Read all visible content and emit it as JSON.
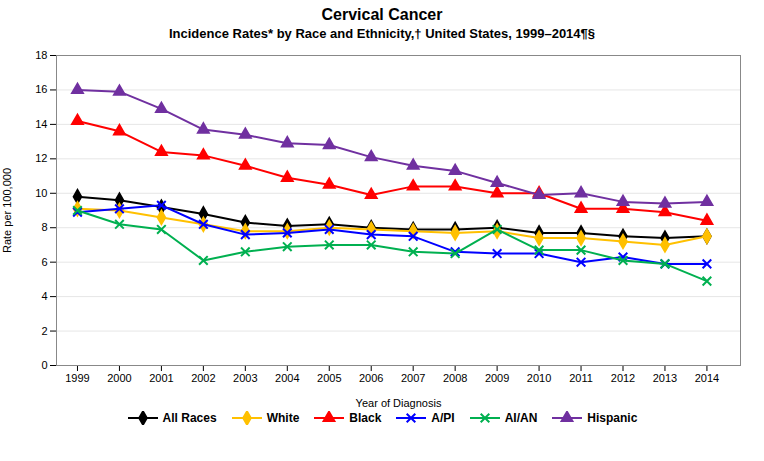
{
  "chart_data": {
    "type": "line",
    "title": "Cervical Cancer",
    "subtitle": "Incidence Rates* by Race and Ethnicity,† United States, 1999–2014¶§",
    "x_label": "Year of Diagnosis",
    "y_label": "Rate per 100,000",
    "x": [
      1999,
      2000,
      2001,
      2002,
      2003,
      2004,
      2005,
      2006,
      2007,
      2008,
      2009,
      2010,
      2011,
      2012,
      2013,
      2014
    ],
    "series": [
      {
        "name": "All Races",
        "color": "#000000",
        "marker": "diamond",
        "values": [
          9.8,
          9.6,
          9.2,
          8.8,
          8.3,
          8.1,
          8.2,
          8.0,
          7.9,
          7.9,
          8.0,
          7.7,
          7.7,
          7.5,
          7.4,
          7.5
        ]
      },
      {
        "name": "White",
        "color": "#FFC000",
        "marker": "diamond",
        "values": [
          9.1,
          9.0,
          8.6,
          8.2,
          7.8,
          7.8,
          8.0,
          7.9,
          7.8,
          7.7,
          7.8,
          7.4,
          7.4,
          7.2,
          7.0,
          7.5
        ]
      },
      {
        "name": "Black",
        "color": "#FF0000",
        "marker": "triangle",
        "values": [
          14.2,
          13.6,
          12.4,
          12.2,
          11.6,
          10.9,
          10.5,
          9.9,
          10.4,
          10.4,
          10.0,
          10.0,
          9.1,
          9.1,
          8.9,
          8.4
        ]
      },
      {
        "name": "A/PI",
        "color": "#0000FF",
        "marker": "x",
        "values": [
          8.9,
          9.1,
          9.3,
          8.2,
          7.6,
          7.7,
          7.9,
          7.6,
          7.5,
          6.6,
          6.5,
          6.5,
          6.0,
          6.3,
          5.9,
          5.9
        ]
      },
      {
        "name": "AI/AN",
        "color": "#00B050",
        "marker": "x",
        "values": [
          9.0,
          8.2,
          7.9,
          6.1,
          6.6,
          6.9,
          7.0,
          7.0,
          6.6,
          6.5,
          7.9,
          6.7,
          6.7,
          6.1,
          5.9,
          4.9
        ]
      },
      {
        "name": "Hispanic",
        "color": "#7030A0",
        "marker": "triangle",
        "values": [
          16.0,
          15.9,
          14.9,
          13.7,
          13.4,
          12.9,
          12.8,
          12.1,
          11.6,
          11.3,
          10.6,
          9.9,
          10.0,
          9.5,
          9.4,
          9.5
        ]
      }
    ],
    "xlim": [
      1998.5,
      2014.8
    ],
    "xticks": [
      1999,
      2000,
      2001,
      2002,
      2003,
      2004,
      2005,
      2006,
      2007,
      2008,
      2009,
      2010,
      2011,
      2012,
      2013,
      2014
    ],
    "ylim": [
      0,
      18
    ],
    "yticks": [
      0,
      2,
      4,
      6,
      8,
      10,
      12,
      14,
      16,
      18
    ],
    "grid": true,
    "legend": "bottom"
  }
}
